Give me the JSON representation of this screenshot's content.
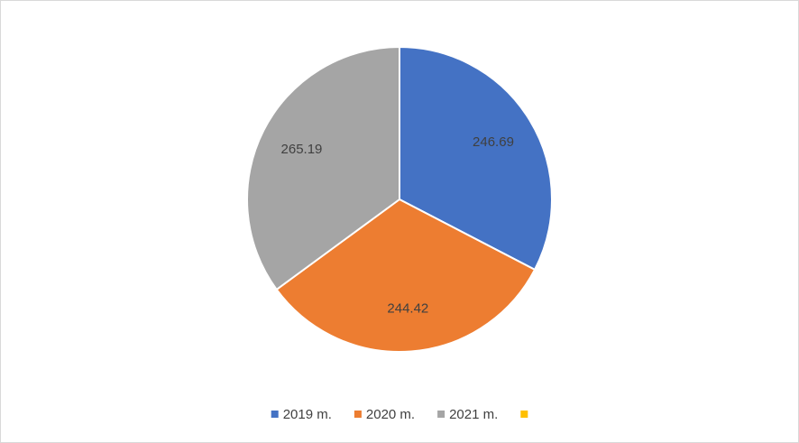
{
  "chart_data": {
    "type": "pie",
    "categories": [
      "2019 m.",
      "2020 m.",
      "2021 m.",
      null
    ],
    "values": [
      246.69,
      244.42,
      265.19,
      0
    ],
    "colors": [
      "#4472c4",
      "#ed7d31",
      "#a5a5a5",
      "#ffc000"
    ],
    "legend": "bottom"
  }
}
